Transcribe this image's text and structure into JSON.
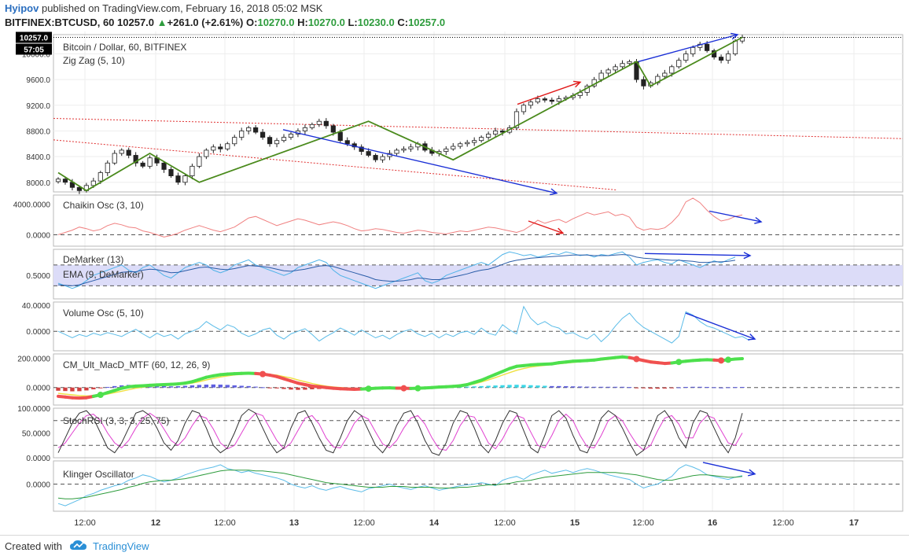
{
  "header": {
    "author": "Hyipov",
    "published_text": "published on TradingView.com, February 16, 2018 05:02 MSK",
    "symbol": "BITFINEX:BTCUSD, 60",
    "last": "10257.0",
    "change_arrow": "▲",
    "change": "+261.0 (+2.61%)",
    "o_label": "O:",
    "o": "10270.0",
    "h_label": "H:",
    "h": "10270.0",
    "l_label": "L:",
    "l": "10230.0",
    "c_label": "C:",
    "c": "10257.0"
  },
  "colors": {
    "up_candle": "#ffffff",
    "down_candle": "#222222",
    "zigzag": "#4a8a1c",
    "trend_blue": "#1a2fd6",
    "trend_red": "#e01a1a",
    "dotted_red": "#e03030",
    "chaikin": "#f08080",
    "demarker": "#4fb3e8",
    "ema": "#2a5ca8",
    "demarker_band": "#dcdcf8",
    "volume_osc": "#5bbce8",
    "macd_green": "#4de04d",
    "macd_red": "#f05050",
    "macd_yellow": "#f0e040",
    "stoch_k": "#333333",
    "stoch_d": "#e040d0",
    "klinger_blue": "#5bbce8",
    "klinger_green": "#2e9c3d",
    "grid": "#eeeeee",
    "price_tag_bg": "#000000",
    "brand": "#2a8fd6"
  },
  "chart_data": [
    {
      "type": "candlestick",
      "title": "Bitcoin / Dollar, 60, BITFINEX",
      "indicator": "Zig Zag (5, 10)",
      "y_ticks": [
        "8000.0",
        "8400.0",
        "8800.0",
        "9200.0",
        "9600.0",
        "10000.0"
      ],
      "ylim": [
        7850,
        10300
      ],
      "last_price_tag": "10257.0",
      "countdown_tag": "57:05",
      "close_series": [
        8050,
        8000,
        7920,
        7870,
        7950,
        8020,
        8150,
        8300,
        8450,
        8500,
        8420,
        8300,
        8250,
        8380,
        8300,
        8200,
        8100,
        8000,
        8100,
        8250,
        8400,
        8500,
        8550,
        8520,
        8600,
        8700,
        8800,
        8850,
        8780,
        8700,
        8600,
        8650,
        8700,
        8750,
        8800,
        8850,
        8900,
        8950,
        8880,
        8780,
        8650,
        8600,
        8550,
        8480,
        8420,
        8350,
        8400,
        8450,
        8500,
        8520,
        8550,
        8600,
        8500,
        8450,
        8480,
        8520,
        8560,
        8600,
        8620,
        8650,
        8700,
        8750,
        8800,
        8780,
        8850,
        9100,
        9200,
        9250,
        9300,
        9280,
        9260,
        9300,
        9320,
        9350,
        9400,
        9500,
        9600,
        9700,
        9750,
        9800,
        9850,
        9880,
        9600,
        9500,
        9550,
        9650,
        9700,
        9800,
        9900,
        10000,
        10100,
        10150,
        10050,
        9950,
        9900,
        10000,
        10200,
        10257
      ],
      "zigzag_points": [
        {
          "i": 0,
          "v": 8150
        },
        {
          "i": 4,
          "v": 7870
        },
        {
          "i": 13,
          "v": 8450
        },
        {
          "i": 20,
          "v": 8000
        },
        {
          "i": 44,
          "v": 8950
        },
        {
          "i": 56,
          "v": 8350
        },
        {
          "i": 82,
          "v": 9880
        },
        {
          "i": 84,
          "v": 9500
        },
        {
          "i": 97,
          "v": 10257
        }
      ]
    },
    {
      "type": "line",
      "title": "Chaikin Osc (3, 10)",
      "y_ticks": [
        "4000.0000",
        "0.0000"
      ],
      "ylim": [
        -1500,
        5200
      ],
      "values": [
        0,
        300,
        600,
        1000,
        800,
        500,
        700,
        1200,
        1500,
        1300,
        1000,
        900,
        500,
        300,
        0,
        -300,
        -100,
        200,
        600,
        900,
        1200,
        900,
        600,
        400,
        700,
        1000,
        1600,
        2200,
        2400,
        2000,
        1600,
        1200,
        1500,
        1800,
        2100,
        1900,
        1600,
        1300,
        1500,
        1700,
        1500,
        1200,
        800,
        500,
        600,
        800,
        700,
        500,
        300,
        200,
        400,
        600,
        500,
        300,
        200,
        100,
        300,
        500,
        400,
        600,
        800,
        1000,
        900,
        700,
        500,
        300,
        600,
        1200,
        1900,
        1500,
        1800,
        2000,
        1600,
        2100,
        2500,
        2900,
        2600,
        2800,
        3000,
        2500,
        2700,
        2300,
        1000,
        600,
        800,
        700,
        900,
        1600,
        2600,
        4300,
        4800,
        4200,
        3200,
        2400,
        1800,
        2000,
        2400,
        2600
      ]
    },
    {
      "type": "line",
      "title": "DeMarker (13)",
      "series": [
        {
          "name": "EMA (9, DeMarker)"
        }
      ],
      "y_ticks": [
        "0.5000"
      ],
      "ylim": [
        0.05,
        1.0
      ],
      "demarker": [
        0.35,
        0.3,
        0.25,
        0.3,
        0.4,
        0.5,
        0.55,
        0.6,
        0.65,
        0.7,
        0.6,
        0.55,
        0.65,
        0.7,
        0.6,
        0.5,
        0.45,
        0.55,
        0.65,
        0.7,
        0.75,
        0.7,
        0.6,
        0.55,
        0.6,
        0.7,
        0.75,
        0.8,
        0.7,
        0.65,
        0.6,
        0.55,
        0.5,
        0.55,
        0.65,
        0.7,
        0.75,
        0.8,
        0.75,
        0.6,
        0.5,
        0.45,
        0.4,
        0.35,
        0.3,
        0.25,
        0.3,
        0.35,
        0.4,
        0.45,
        0.5,
        0.55,
        0.4,
        0.35,
        0.4,
        0.5,
        0.55,
        0.6,
        0.65,
        0.7,
        0.75,
        0.7,
        0.8,
        0.9,
        0.95,
        0.92,
        0.88,
        0.9,
        0.85,
        0.88,
        0.92,
        0.9,
        0.95,
        0.92,
        0.88,
        0.9,
        0.85,
        0.9,
        0.88,
        0.92,
        0.95,
        0.85,
        0.7,
        0.75,
        0.78,
        0.8,
        0.75,
        0.72,
        0.8,
        0.75,
        0.7,
        0.65,
        0.72,
        0.78,
        0.74,
        0.8,
        0.85
      ],
      "ema": [
        0.32,
        0.31,
        0.3,
        0.32,
        0.36,
        0.4,
        0.44,
        0.48,
        0.52,
        0.56,
        0.57,
        0.57,
        0.6,
        0.62,
        0.61,
        0.58,
        0.55,
        0.56,
        0.59,
        0.62,
        0.65,
        0.66,
        0.64,
        0.62,
        0.61,
        0.63,
        0.66,
        0.69,
        0.68,
        0.67,
        0.65,
        0.62,
        0.59,
        0.58,
        0.6,
        0.62,
        0.65,
        0.68,
        0.69,
        0.67,
        0.63,
        0.59,
        0.55,
        0.51,
        0.47,
        0.42,
        0.4,
        0.39,
        0.39,
        0.4,
        0.42,
        0.45,
        0.44,
        0.42,
        0.42,
        0.44,
        0.47,
        0.5,
        0.53,
        0.57,
        0.6,
        0.62,
        0.66,
        0.71,
        0.76,
        0.79,
        0.81,
        0.83,
        0.84,
        0.85,
        0.86,
        0.87,
        0.88,
        0.89,
        0.89,
        0.89,
        0.88,
        0.88,
        0.88,
        0.89,
        0.9,
        0.89,
        0.85,
        0.83,
        0.82,
        0.81,
        0.8,
        0.79,
        0.79,
        0.78,
        0.77,
        0.75,
        0.75,
        0.76,
        0.76,
        0.77,
        0.79
      ]
    },
    {
      "type": "line",
      "title": "Volume Osc (5, 10)",
      "y_ticks": [
        "40.0000",
        "0.0000"
      ],
      "ylim": [
        -30,
        45
      ],
      "values": [
        0,
        -5,
        -10,
        -5,
        -8,
        -3,
        -6,
        -2,
        -5,
        -8,
        -2,
        3,
        -4,
        -10,
        -3,
        -8,
        -5,
        -12,
        -4,
        0,
        5,
        15,
        8,
        2,
        10,
        6,
        -3,
        -8,
        -4,
        2,
        5,
        -6,
        -12,
        -4,
        0,
        4,
        -5,
        -15,
        -8,
        -2,
        5,
        0,
        -6,
        2,
        -4,
        -10,
        -6,
        -12,
        -5,
        0,
        3,
        -4,
        -8,
        -3,
        -10,
        -4,
        -8,
        -2,
        0,
        -5,
        5,
        -3,
        -6,
        10,
        2,
        -4,
        38,
        20,
        10,
        15,
        8,
        5,
        -4,
        -2,
        -8,
        -12,
        -4,
        -16,
        -6,
        8,
        20,
        28,
        15,
        6,
        0,
        -6,
        -12,
        -18,
        -8,
        30,
        25,
        15,
        8,
        5,
        0,
        -5,
        -10,
        -8,
        -14
      ]
    },
    {
      "type": "line",
      "title": "CM_Ult_MacD_MTF (60, 12, 26, 9)",
      "y_ticks": [
        "200.0000",
        "0.0000"
      ],
      "ylim": [
        -120,
        230
      ],
      "macd": [
        -60,
        -65,
        -70,
        -72,
        -70,
        -60,
        -50,
        -35,
        -20,
        -5,
        5,
        10,
        12,
        15,
        18,
        20,
        22,
        25,
        30,
        40,
        55,
        70,
        80,
        88,
        92,
        95,
        97,
        98,
        96,
        92,
        85,
        75,
        60,
        45,
        30,
        20,
        10,
        5,
        0,
        -5,
        -8,
        -10,
        -12,
        -10,
        -8,
        -5,
        -3,
        -2,
        -4,
        -5,
        -6,
        -5,
        -3,
        0,
        3,
        5,
        8,
        12,
        20,
        35,
        50,
        70,
        90,
        110,
        130,
        145,
        150,
        155,
        158,
        160,
        162,
        170,
        175,
        180,
        182,
        185,
        188,
        195,
        200,
        205,
        210,
        205,
        195,
        185,
        175,
        170,
        165,
        168,
        175,
        180,
        185,
        188,
        190,
        188,
        185,
        190,
        195,
        198
      ],
      "signal": [
        -40,
        -45,
        -50,
        -55,
        -58,
        -56,
        -52,
        -45,
        -35,
        -25,
        -15,
        -5,
        2,
        8,
        12,
        15,
        18,
        20,
        24,
        30,
        40,
        52,
        62,
        72,
        80,
        86,
        90,
        93,
        94,
        93,
        90,
        85,
        75,
        65,
        52,
        40,
        28,
        18,
        10,
        4,
        0,
        -3,
        -6,
        -8,
        -8,
        -7,
        -5,
        -4,
        -4,
        -4,
        -5,
        -5,
        -4,
        -2,
        0,
        2,
        5,
        9,
        15,
        25,
        38,
        52,
        68,
        85,
        102,
        118,
        130,
        140,
        147,
        152,
        156,
        162,
        167,
        172,
        176,
        180,
        183,
        188,
        193,
        198,
        203,
        202,
        197,
        190,
        183,
        177,
        172,
        170,
        172,
        176,
        180,
        184,
        187,
        187,
        186,
        188,
        191,
        194
      ],
      "hist": [
        -22,
        -24,
        -26,
        -25,
        -20,
        -12,
        -5,
        4,
        10,
        15,
        18,
        18,
        16,
        14,
        12,
        10,
        8,
        9,
        12,
        15,
        18,
        20,
        21,
        20,
        18,
        15,
        12,
        10,
        6,
        2,
        -2,
        -6,
        -10,
        -14,
        -16,
        -15,
        -12,
        -10,
        -8,
        -6,
        -4,
        -4,
        -3,
        -2,
        -1,
        0,
        1,
        1,
        0,
        -1,
        -1,
        0,
        1,
        2,
        3,
        3,
        4,
        5,
        6,
        8,
        10,
        12,
        14,
        16,
        18,
        19,
        18,
        16,
        14,
        12,
        10,
        10,
        9,
        8,
        7,
        6,
        5,
        5,
        5,
        5,
        5,
        3,
        -2,
        -5,
        -8,
        -8,
        -7,
        -4,
        1,
        4,
        5,
        5,
        4,
        2,
        0,
        2,
        3,
        4
      ]
    },
    {
      "type": "line",
      "title": "StochRSI (3, 3, 3, 25, 75)",
      "y_ticks": [
        "100.0000",
        "50.0000",
        "0.0000"
      ],
      "ylim": [
        0,
        100
      ],
      "levels": [
        25,
        75
      ],
      "k": [
        10,
        40,
        70,
        90,
        95,
        80,
        50,
        20,
        10,
        30,
        60,
        90,
        95,
        85,
        60,
        30,
        15,
        35,
        70,
        95,
        90,
        60,
        25,
        10,
        20,
        50,
        85,
        98,
        90,
        60,
        30,
        10,
        20,
        60,
        90,
        95,
        70,
        40,
        15,
        10,
        40,
        75,
        95,
        85,
        55,
        25,
        10,
        30,
        65,
        90,
        95,
        70,
        35,
        10,
        5,
        30,
        70,
        95,
        90,
        60,
        25,
        10,
        35,
        70,
        95,
        90,
        55,
        20,
        10,
        45,
        85,
        95,
        80,
        45,
        15,
        10,
        40,
        80,
        95,
        85,
        60,
        30,
        5,
        15,
        50,
        85,
        95,
        75,
        40,
        20,
        70,
        95,
        90,
        60,
        30,
        10,
        40,
        90
      ],
      "d": [
        20,
        30,
        50,
        70,
        85,
        88,
        75,
        50,
        30,
        20,
        35,
        60,
        80,
        90,
        80,
        58,
        35,
        25,
        40,
        65,
        85,
        80,
        58,
        30,
        18,
        25,
        50,
        75,
        90,
        85,
        60,
        35,
        18,
        30,
        55,
        80,
        85,
        68,
        40,
        22,
        20,
        42,
        70,
        85,
        78,
        52,
        28,
        20,
        35,
        60,
        80,
        85,
        68,
        40,
        18,
        15,
        35,
        65,
        85,
        82,
        58,
        30,
        18,
        38,
        65,
        85,
        80,
        52,
        25,
        20,
        45,
        75,
        88,
        75,
        45,
        22,
        20,
        45,
        75,
        85,
        75,
        50,
        28,
        15,
        25,
        55,
        80,
        85,
        68,
        40,
        40,
        70,
        85,
        80,
        55,
        30,
        25,
        50
      ]
    },
    {
      "type": "line",
      "title": "Klinger Oscillator",
      "y_ticks": [
        "0.0000"
      ],
      "ylim": [
        -35,
        30
      ],
      "klinger": [
        -25,
        -28,
        -24,
        -20,
        -15,
        -12,
        -8,
        -5,
        -2,
        0,
        5,
        8,
        12,
        10,
        6,
        3,
        5,
        8,
        12,
        15,
        18,
        20,
        22,
        25,
        20,
        18,
        15,
        17,
        14,
        12,
        10,
        8,
        5,
        0,
        -3,
        -5,
        -2,
        -6,
        -8,
        -5,
        -3,
        -6,
        -8,
        -10,
        -6,
        -4,
        -2,
        0,
        -3,
        -5,
        -7,
        -4,
        -2,
        -5,
        -8,
        -6,
        -4,
        -2,
        -1,
        0,
        2,
        0,
        -2,
        5,
        8,
        10,
        6,
        12,
        15,
        18,
        14,
        16,
        18,
        15,
        18,
        20,
        18,
        15,
        12,
        10,
        8,
        6,
        0,
        -5,
        -2,
        0,
        5,
        10,
        20,
        25,
        22,
        18,
        12,
        10,
        8,
        6,
        9,
        11
      ],
      "signal": [
        -18,
        -19,
        -19,
        -18,
        -17,
        -15,
        -13,
        -11,
        -9,
        -7,
        -4,
        -2,
        1,
        3,
        4,
        5,
        5,
        6,
        7,
        9,
        11,
        13,
        15,
        17,
        18,
        18,
        18,
        18,
        17,
        17,
        16,
        15,
        14,
        12,
        10,
        8,
        6,
        4,
        2,
        1,
        0,
        -1,
        -2,
        -3,
        -4,
        -4,
        -4,
        -3,
        -3,
        -3,
        -4,
        -4,
        -4,
        -4,
        -5,
        -5,
        -5,
        -4,
        -4,
        -3,
        -2,
        -1,
        -1,
        0,
        1,
        3,
        4,
        5,
        7,
        9,
        10,
        11,
        12,
        13,
        14,
        15,
        15,
        15,
        15,
        15,
        14,
        13,
        12,
        10,
        8,
        6,
        5,
        5,
        7,
        9,
        11,
        12,
        12,
        11,
        10,
        9,
        9,
        10
      ]
    }
  ],
  "x_axis": {
    "labels": [
      "12:00",
      "12",
      "12:00",
      "13",
      "12:00",
      "14",
      "12:00",
      "15",
      "12:00",
      "16",
      "12:00",
      "17"
    ],
    "bold_labels": [
      "12",
      "13",
      "14",
      "15",
      "16",
      "17"
    ]
  },
  "footer": {
    "created_with": "Created with",
    "brand": "TradingView"
  }
}
